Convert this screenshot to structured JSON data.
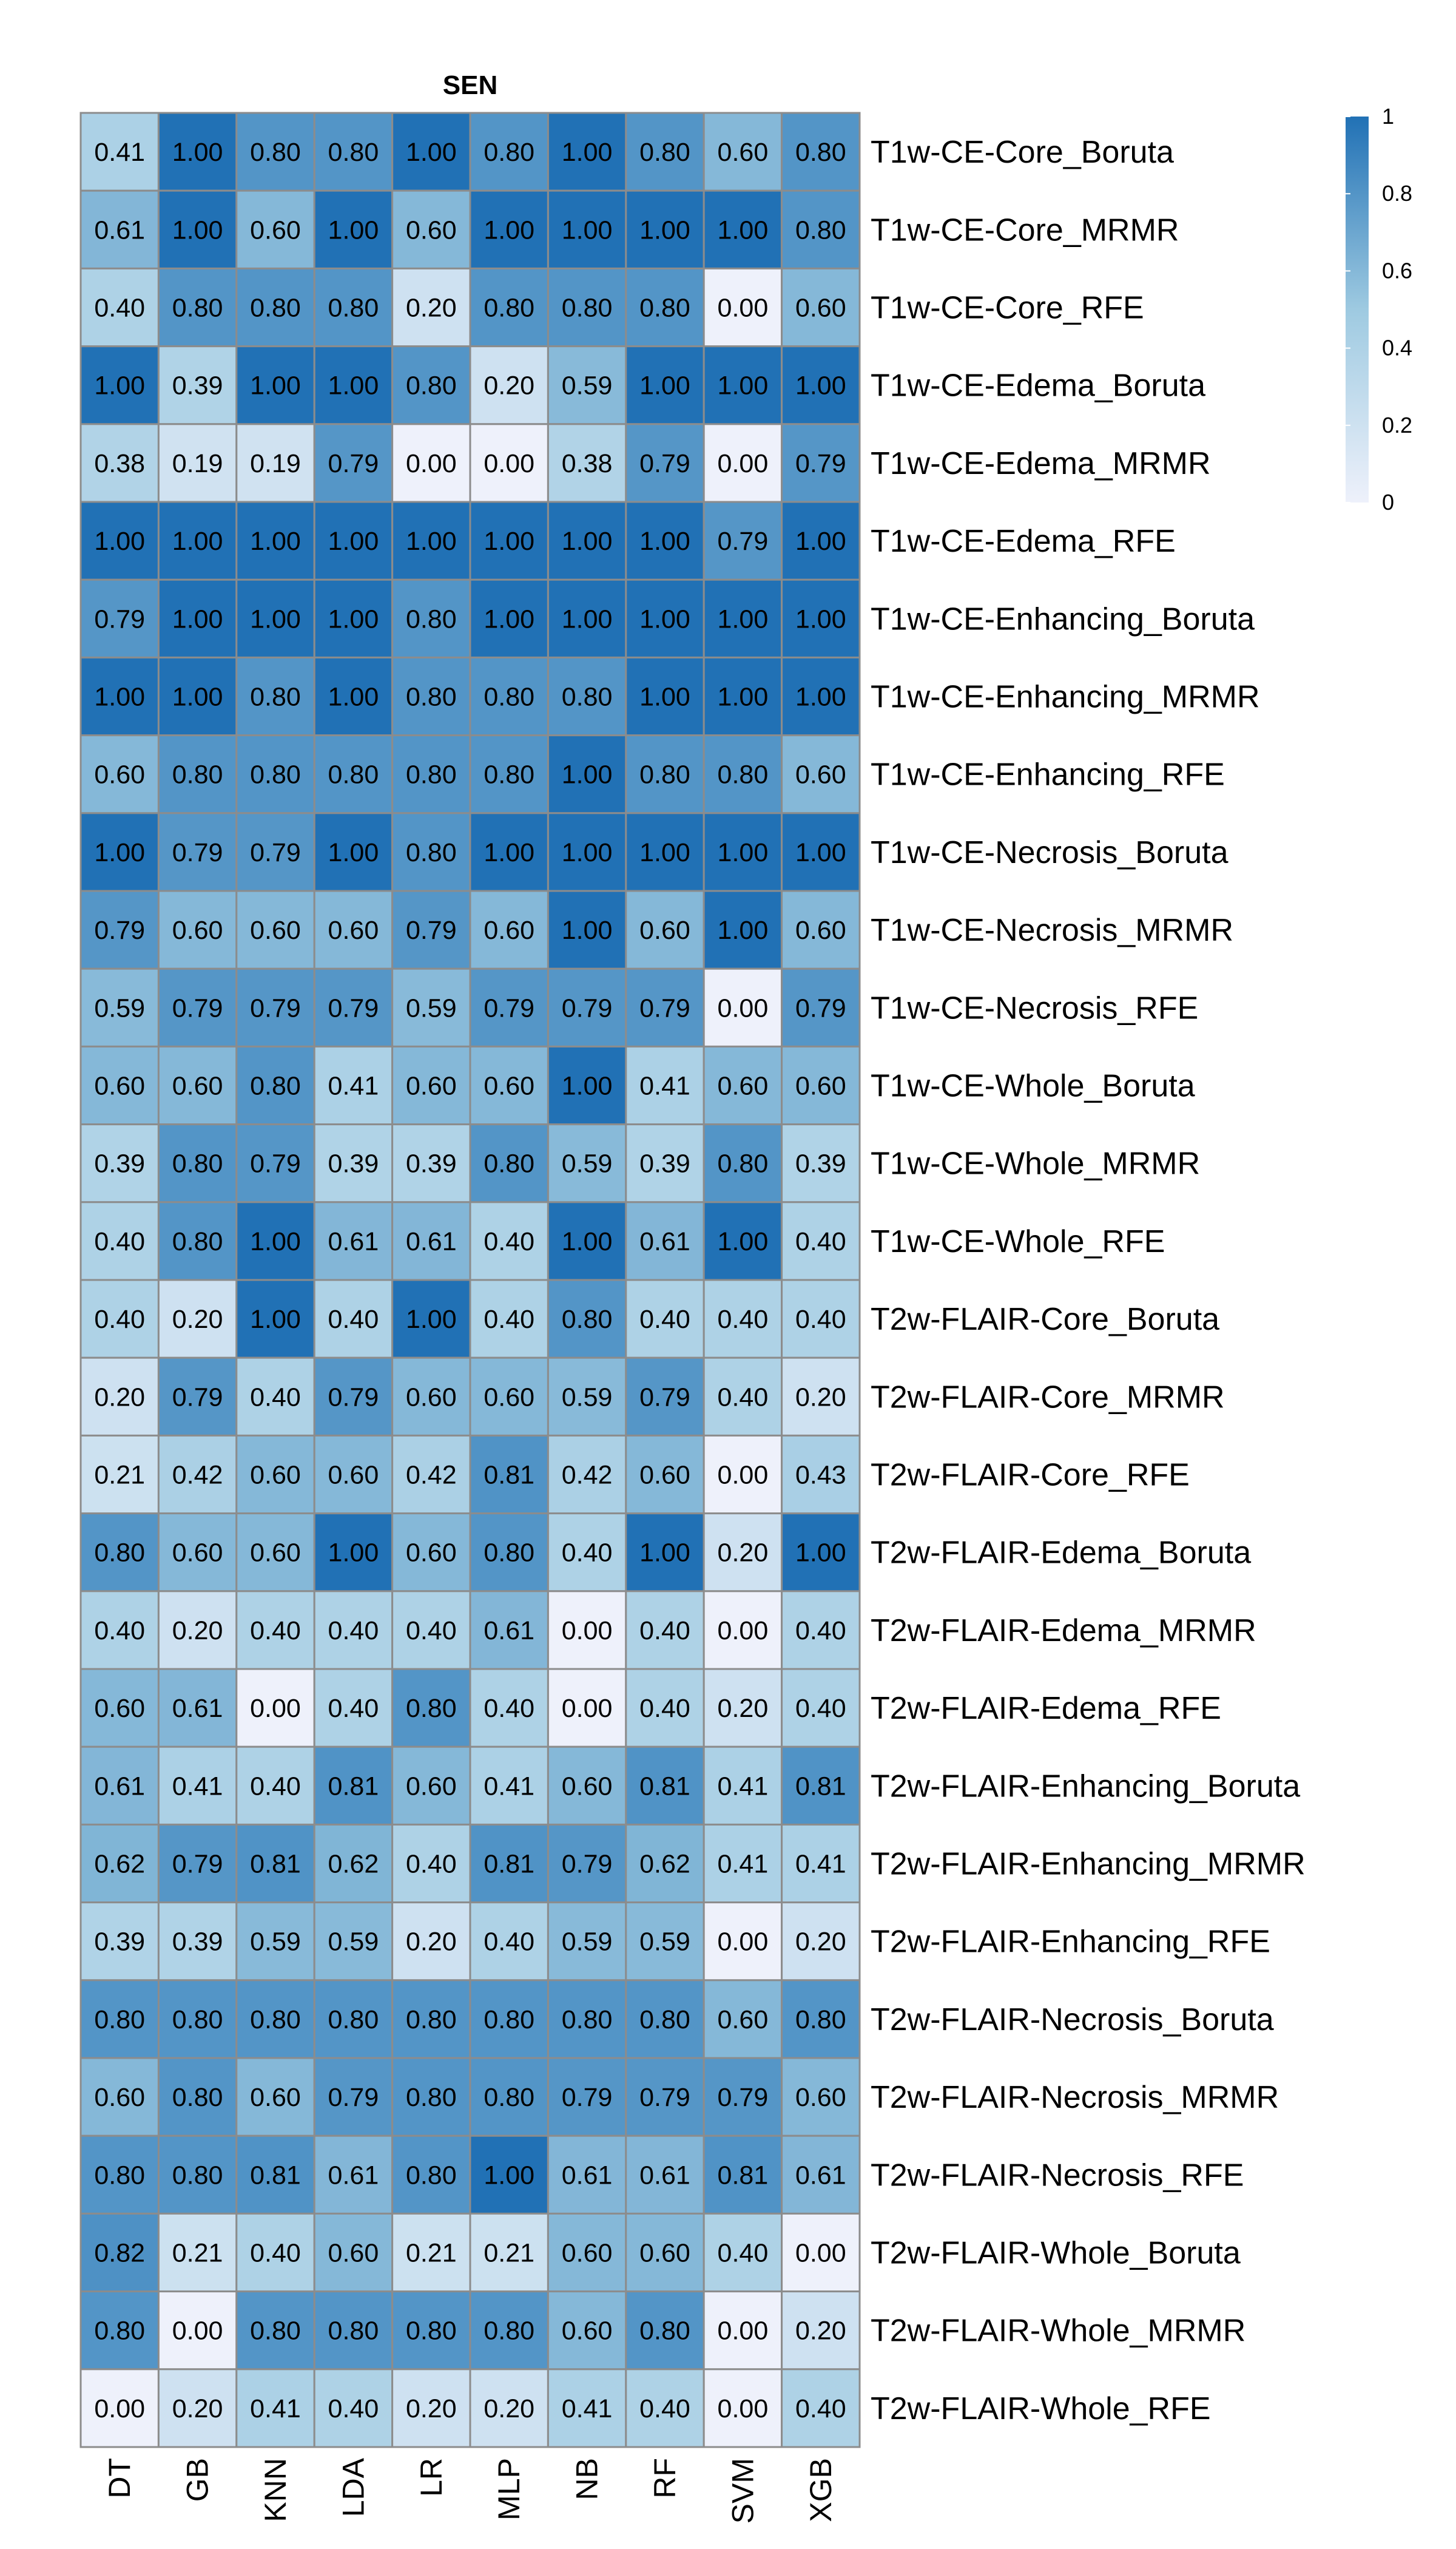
{
  "chart_data": {
    "type": "heatmap",
    "title": "SEN",
    "columns": [
      "DT",
      "GB",
      "KNN",
      "LDA",
      "LR",
      "MLP",
      "NB",
      "RF",
      "SVM",
      "XGB"
    ],
    "rows": [
      "T1w-CE-Core_Boruta",
      "T1w-CE-Core_MRMR",
      "T1w-CE-Core_RFE",
      "T1w-CE-Edema_Boruta",
      "T1w-CE-Edema_MRMR",
      "T1w-CE-Edema_RFE",
      "T1w-CE-Enhancing_Boruta",
      "T1w-CE-Enhancing_MRMR",
      "T1w-CE-Enhancing_RFE",
      "T1w-CE-Necrosis_Boruta",
      "T1w-CE-Necrosis_MRMR",
      "T1w-CE-Necrosis_RFE",
      "T1w-CE-Whole_Boruta",
      "T1w-CE-Whole_MRMR",
      "T1w-CE-Whole_RFE",
      "T2w-FLAIR-Core_Boruta",
      "T2w-FLAIR-Core_MRMR",
      "T2w-FLAIR-Core_RFE",
      "T2w-FLAIR-Edema_Boruta",
      "T2w-FLAIR-Edema_MRMR",
      "T2w-FLAIR-Edema_RFE",
      "T2w-FLAIR-Enhancing_Boruta",
      "T2w-FLAIR-Enhancing_MRMR",
      "T2w-FLAIR-Enhancing_RFE",
      "T2w-FLAIR-Necrosis_Boruta",
      "T2w-FLAIR-Necrosis_MRMR",
      "T2w-FLAIR-Necrosis_RFE",
      "T2w-FLAIR-Whole_Boruta",
      "T2w-FLAIR-Whole_MRMR",
      "T2w-FLAIR-Whole_RFE"
    ],
    "values": [
      [
        0.41,
        1.0,
        0.8,
        0.8,
        1.0,
        0.8,
        1.0,
        0.8,
        0.6,
        0.8
      ],
      [
        0.61,
        1.0,
        0.6,
        1.0,
        0.6,
        1.0,
        1.0,
        1.0,
        1.0,
        0.8
      ],
      [
        0.4,
        0.8,
        0.8,
        0.8,
        0.2,
        0.8,
        0.8,
        0.8,
        0.0,
        0.6
      ],
      [
        1.0,
        0.39,
        1.0,
        1.0,
        0.8,
        0.2,
        0.59,
        1.0,
        1.0,
        1.0
      ],
      [
        0.38,
        0.19,
        0.19,
        0.79,
        0.0,
        0.0,
        0.38,
        0.79,
        0.0,
        0.79
      ],
      [
        1.0,
        1.0,
        1.0,
        1.0,
        1.0,
        1.0,
        1.0,
        1.0,
        0.79,
        1.0
      ],
      [
        0.79,
        1.0,
        1.0,
        1.0,
        0.8,
        1.0,
        1.0,
        1.0,
        1.0,
        1.0
      ],
      [
        1.0,
        1.0,
        0.8,
        1.0,
        0.8,
        0.8,
        0.8,
        1.0,
        1.0,
        1.0
      ],
      [
        0.6,
        0.8,
        0.8,
        0.8,
        0.8,
        0.8,
        1.0,
        0.8,
        0.8,
        0.6
      ],
      [
        1.0,
        0.79,
        0.79,
        1.0,
        0.8,
        1.0,
        1.0,
        1.0,
        1.0,
        1.0
      ],
      [
        0.79,
        0.6,
        0.6,
        0.6,
        0.79,
        0.6,
        1.0,
        0.6,
        1.0,
        0.6
      ],
      [
        0.59,
        0.79,
        0.79,
        0.79,
        0.59,
        0.79,
        0.79,
        0.79,
        0.0,
        0.79
      ],
      [
        0.6,
        0.6,
        0.8,
        0.41,
        0.6,
        0.6,
        1.0,
        0.41,
        0.6,
        0.6
      ],
      [
        0.39,
        0.8,
        0.79,
        0.39,
        0.39,
        0.8,
        0.59,
        0.39,
        0.8,
        0.39
      ],
      [
        0.4,
        0.8,
        1.0,
        0.61,
        0.61,
        0.4,
        1.0,
        0.61,
        1.0,
        0.4
      ],
      [
        0.4,
        0.2,
        1.0,
        0.4,
        1.0,
        0.4,
        0.8,
        0.4,
        0.4,
        0.4
      ],
      [
        0.2,
        0.79,
        0.4,
        0.79,
        0.6,
        0.6,
        0.59,
        0.79,
        0.4,
        0.2
      ],
      [
        0.21,
        0.42,
        0.6,
        0.6,
        0.42,
        0.81,
        0.42,
        0.6,
        0.0,
        0.43
      ],
      [
        0.8,
        0.6,
        0.6,
        1.0,
        0.6,
        0.8,
        0.4,
        1.0,
        0.2,
        1.0
      ],
      [
        0.4,
        0.2,
        0.4,
        0.4,
        0.4,
        0.61,
        0.0,
        0.4,
        0.0,
        0.4
      ],
      [
        0.6,
        0.61,
        0.0,
        0.4,
        0.8,
        0.4,
        0.0,
        0.4,
        0.2,
        0.4
      ],
      [
        0.61,
        0.41,
        0.4,
        0.81,
        0.6,
        0.41,
        0.6,
        0.81,
        0.41,
        0.81
      ],
      [
        0.62,
        0.79,
        0.81,
        0.62,
        0.4,
        0.81,
        0.79,
        0.62,
        0.41,
        0.41
      ],
      [
        0.39,
        0.39,
        0.59,
        0.59,
        0.2,
        0.4,
        0.59,
        0.59,
        0.0,
        0.2
      ],
      [
        0.8,
        0.8,
        0.8,
        0.8,
        0.8,
        0.8,
        0.8,
        0.8,
        0.6,
        0.8
      ],
      [
        0.6,
        0.8,
        0.6,
        0.79,
        0.8,
        0.8,
        0.79,
        0.79,
        0.79,
        0.6
      ],
      [
        0.8,
        0.8,
        0.81,
        0.61,
        0.8,
        1.0,
        0.61,
        0.61,
        0.81,
        0.61
      ],
      [
        0.82,
        0.21,
        0.4,
        0.6,
        0.21,
        0.21,
        0.6,
        0.6,
        0.4,
        0.0
      ],
      [
        0.8,
        0.0,
        0.8,
        0.8,
        0.8,
        0.8,
        0.6,
        0.8,
        0.0,
        0.2
      ],
      [
        0.0,
        0.2,
        0.41,
        0.4,
        0.2,
        0.2,
        0.41,
        0.4,
        0.0,
        0.4
      ]
    ],
    "value_range": [
      0,
      1
    ],
    "legend": {
      "ticks": [
        0,
        0.2,
        0.4,
        0.6,
        0.8,
        1
      ],
      "tick_labels": [
        "0",
        "0.2",
        "0.4",
        "0.6",
        "0.8",
        "1"
      ],
      "placement": "top-right"
    },
    "colors": {
      "low": "#eef1fb",
      "mid": "#9ecae1",
      "high": "#2171b5",
      "grid": "#8c8c8c",
      "text": "#000000"
    }
  }
}
